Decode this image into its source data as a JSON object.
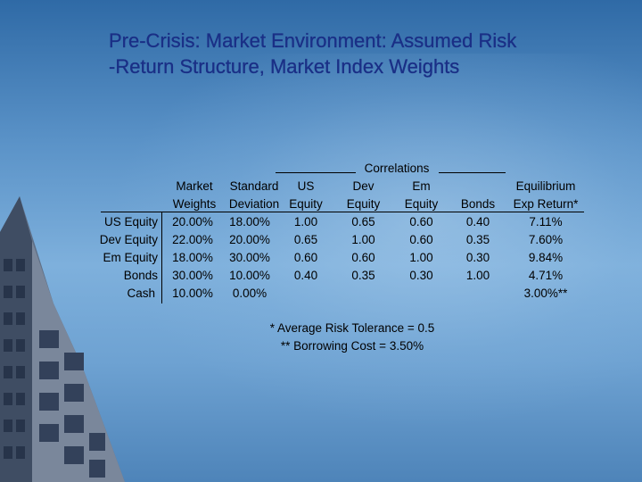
{
  "title": {
    "line1": "Pre-Crisis: Market Environment: Assumed Risk",
    "line2": "-Return Structure, Market Index Weights"
  },
  "table": {
    "correlations_header": "Correlations",
    "col_headers": {
      "weights_1": "Market",
      "weights_2": "Weights",
      "stddev_1": "Standard",
      "stddev_2": "Deviation",
      "us_1": "US",
      "us_2": "Equity",
      "dev_1": "Dev",
      "dev_2": "Equity",
      "em_1": "Em",
      "em_2": "Equity",
      "bonds_2": "Bonds",
      "exp_1": "Equilibrium",
      "exp_2": "Exp Return*"
    },
    "rows": [
      {
        "label": "US Equity",
        "weight": "20.00%",
        "stddev": "18.00%",
        "us": "1.00",
        "dev": "0.65",
        "em": "0.60",
        "bonds": "0.40",
        "exp": "7.11%"
      },
      {
        "label": "Dev Equity",
        "weight": "22.00%",
        "stddev": "20.00%",
        "us": "0.65",
        "dev": "1.00",
        "em": "0.60",
        "bonds": "0.35",
        "exp": "7.60%"
      },
      {
        "label": "Em Equity",
        "weight": "18.00%",
        "stddev": "30.00%",
        "us": "0.60",
        "dev": "0.60",
        "em": "1.00",
        "bonds": "0.30",
        "exp": "9.84%"
      },
      {
        "label": "Bonds",
        "weight": "30.00%",
        "stddev": "10.00%",
        "us": "0.40",
        "dev": "0.35",
        "em": "0.30",
        "bonds": "1.00",
        "exp": "4.71%"
      },
      {
        "label": "Cash",
        "weight": "10.00%",
        "stddev": "0.00%",
        "us": "",
        "dev": "",
        "em": "",
        "bonds": "",
        "exp": "3.00%**"
      }
    ]
  },
  "notes": {
    "line1": "* Average Risk Tolerance = 0.5",
    "line2": "** Borrowing Cost = 3.50%"
  }
}
